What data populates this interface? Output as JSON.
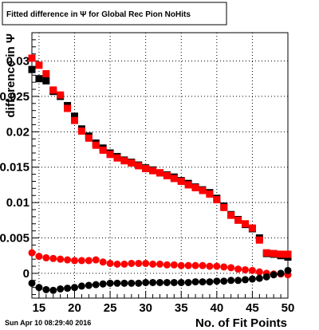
{
  "chart_data": {
    "type": "scatter",
    "title": "Fitted difference in Ψ  for Global Rec Pion NoHits",
    "xlabel": "No. of Fit Points",
    "ylabel": "difference in  Ψ",
    "timestamp": "Sun Apr 10 08:29:40 2016",
    "xlim": [
      14,
      50
    ],
    "ylim": [
      -0.0035,
      0.034
    ],
    "grid": true,
    "x_ticks": [
      15,
      20,
      25,
      30,
      35,
      40,
      45,
      50
    ],
    "x_tick_labels": [
      "15",
      "20",
      "25",
      "30",
      "35",
      "40",
      "45",
      "50"
    ],
    "y_ticks": [
      0,
      0.005,
      0.01,
      0.015,
      0.02,
      0.025,
      0.03
    ],
    "y_tick_labels": [
      "0",
      "0.005",
      "0.01",
      "0.015",
      "0.02",
      "0.025",
      "0.03"
    ],
    "series": [
      {
        "marker": "square",
        "color": "#000000",
        "x": [
          14,
          15,
          16,
          17,
          18,
          19,
          20,
          21,
          22,
          23,
          24,
          25,
          26,
          27,
          28,
          29,
          30,
          31,
          32,
          33,
          34,
          35,
          36,
          37,
          38,
          39,
          40,
          41,
          42,
          43,
          44,
          45,
          46,
          47,
          48,
          49,
          50
        ],
        "y": [
          0.0288,
          0.0275,
          0.0272,
          0.0257,
          0.025,
          0.0237,
          0.0222,
          0.0204,
          0.0194,
          0.0184,
          0.0177,
          0.017,
          0.0165,
          0.016,
          0.0157,
          0.0153,
          0.0149,
          0.0146,
          0.0142,
          0.0139,
          0.0136,
          0.0131,
          0.0127,
          0.0122,
          0.0118,
          0.0114,
          0.0106,
          0.0095,
          0.0083,
          0.0076,
          0.0069,
          0.0063,
          0.005,
          0.0028,
          0.0027,
          0.0025,
          0.0023
        ]
      },
      {
        "marker": "square",
        "color": "#ff0000",
        "x": [
          14,
          15,
          16,
          17,
          18,
          19,
          20,
          21,
          22,
          23,
          24,
          25,
          26,
          27,
          28,
          29,
          30,
          31,
          32,
          33,
          34,
          35,
          36,
          37,
          38,
          39,
          40,
          41,
          42,
          43,
          44,
          45,
          46,
          47,
          48,
          49,
          50
        ],
        "y": [
          0.0304,
          0.0294,
          0.0282,
          0.0259,
          0.0252,
          0.0233,
          0.0216,
          0.0201,
          0.0191,
          0.0181,
          0.0174,
          0.0168,
          0.0163,
          0.0159,
          0.0156,
          0.0152,
          0.0148,
          0.0145,
          0.0142,
          0.0138,
          0.0134,
          0.013,
          0.0125,
          0.0121,
          0.0117,
          0.0112,
          0.0104,
          0.0093,
          0.0082,
          0.0075,
          0.007,
          0.0064,
          0.0047,
          0.0029,
          0.0028,
          0.0027,
          0.0027
        ]
      },
      {
        "marker": "circle",
        "color": "#ff0000",
        "x": [
          14,
          15,
          16,
          17,
          18,
          19,
          20,
          21,
          22,
          23,
          24,
          25,
          26,
          27,
          28,
          29,
          30,
          31,
          32,
          33,
          34,
          35,
          36,
          37,
          38,
          39,
          40,
          41,
          42,
          43,
          44,
          45,
          46,
          47,
          48,
          49,
          50
        ],
        "y": [
          0.0029,
          0.0024,
          0.0022,
          0.0021,
          0.002,
          0.0019,
          0.0018,
          0.0018,
          0.0018,
          0.0019,
          0.0016,
          0.0014,
          0.0013,
          0.0013,
          0.0014,
          0.0014,
          0.0014,
          0.0013,
          0.0013,
          0.0012,
          0.0012,
          0.0011,
          0.0011,
          0.0011,
          0.0011,
          0.001,
          0.001,
          0.0009,
          0.0008,
          0.0006,
          0.0005,
          0.0004,
          0.0002,
          0.0,
          -0.0001,
          -0.0001,
          -0.0002
        ]
      },
      {
        "marker": "circle",
        "color": "#000000",
        "x": [
          14,
          15,
          16,
          17,
          18,
          19,
          20,
          21,
          22,
          23,
          24,
          25,
          26,
          27,
          28,
          29,
          30,
          31,
          32,
          33,
          34,
          35,
          36,
          37,
          38,
          39,
          40,
          41,
          42,
          43,
          44,
          45,
          46,
          47,
          48,
          49,
          50
        ],
        "y": [
          -0.0014,
          -0.002,
          -0.0023,
          -0.0024,
          -0.0022,
          -0.0021,
          -0.002,
          -0.0018,
          -0.0017,
          -0.0016,
          -0.0015,
          -0.0014,
          -0.0014,
          -0.0014,
          -0.0014,
          -0.0014,
          -0.0013,
          -0.0013,
          -0.0013,
          -0.0013,
          -0.0013,
          -0.0013,
          -0.0013,
          -0.0012,
          -0.0012,
          -0.0012,
          -0.0011,
          -0.0011,
          -0.001,
          -0.001,
          -0.0009,
          -0.0008,
          -0.0007,
          -0.0005,
          -0.0002,
          0.0,
          0.0004
        ]
      }
    ]
  }
}
